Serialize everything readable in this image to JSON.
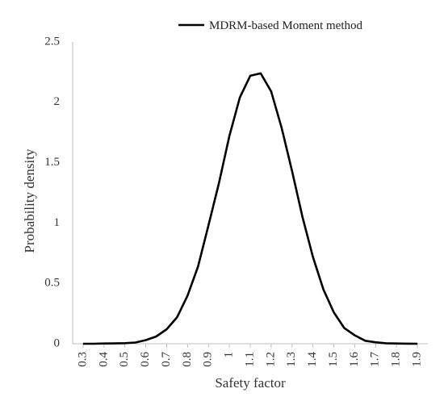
{
  "chart_data": {
    "type": "line",
    "xlabel": "Safety factor",
    "ylabel": "Probability density",
    "x_ticks": [
      "0.3",
      "0.4",
      "0.5",
      "0.6",
      "0.7",
      "0.8",
      "0.9",
      "1",
      "1.1",
      "1.2",
      "1.3",
      "1.4",
      "1.5",
      "1.6",
      "1.7",
      "1.8",
      "1.9"
    ],
    "y_ticks": [
      "0",
      "0.5",
      "1",
      "1.5",
      "2",
      "2.5"
    ],
    "xlim": [
      0.25,
      1.95
    ],
    "ylim": [
      0,
      2.5
    ],
    "grid": false,
    "legend_position": "top",
    "series": [
      {
        "name": "MDRM-based Moment method",
        "color": "#000000",
        "x": [
          0.3,
          0.35,
          0.4,
          0.45,
          0.5,
          0.55,
          0.6,
          0.65,
          0.7,
          0.75,
          0.8,
          0.85,
          0.9,
          0.95,
          1.0,
          1.05,
          1.1,
          1.15,
          1.2,
          1.25,
          1.3,
          1.35,
          1.4,
          1.45,
          1.5,
          1.55,
          1.6,
          1.65,
          1.7,
          1.75,
          1.8,
          1.85,
          1.9
        ],
        "y": [
          0,
          0,
          0.002,
          0.003,
          0.005,
          0.01,
          0.03,
          0.06,
          0.12,
          0.22,
          0.4,
          0.64,
          0.98,
          1.33,
          1.72,
          2.04,
          2.22,
          2.24,
          2.09,
          1.79,
          1.43,
          1.05,
          0.72,
          0.45,
          0.26,
          0.13,
          0.07,
          0.025,
          0.012,
          0.004,
          0.002,
          0.001,
          0
        ]
      }
    ]
  }
}
